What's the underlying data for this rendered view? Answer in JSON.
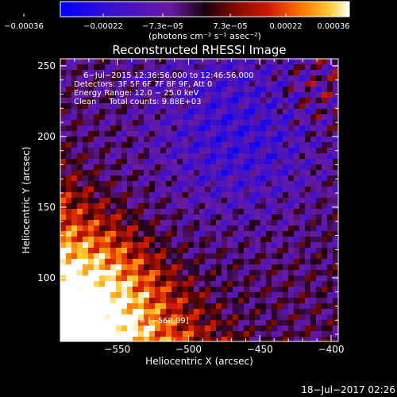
{
  "chart_data": {
    "type": "heatmap",
    "title": "Reconstructed RHESSI Image",
    "xlabel": "Heliocentric X (arcsec)",
    "ylabel": "Heliocentric Y (arcsec)",
    "xlim": [
      -590,
      -395
    ],
    "ylim": [
      55,
      255
    ],
    "x_ticks": [
      {
        "value": -550,
        "label": "−550"
      },
      {
        "value": -500,
        "label": "−500"
      },
      {
        "value": -450,
        "label": "−450"
      },
      {
        "value": -400,
        "label": "−400"
      }
    ],
    "y_ticks": [
      {
        "value": 100,
        "label": "100"
      },
      {
        "value": 150,
        "label": "150"
      },
      {
        "value": 200,
        "label": "200"
      },
      {
        "value": 250,
        "label": "250"
      }
    ],
    "colorbar": {
      "range": [
        -0.00036,
        0.00036
      ],
      "tick_labels": [
        "−0.00036",
        "−0.00022",
        "−7.3e−05",
        "7.3e−05",
        "0.00022",
        "0.00036"
      ],
      "unit_label": "(photons cm⁻² s⁻¹ asec⁻²)",
      "colors": [
        "#0000ff",
        "#3a0fcf",
        "#6a1aa0",
        "#2a0020",
        "#7a0a00",
        "#d01a00",
        "#ff7a00",
        "#ffd040",
        "#ffffff"
      ]
    },
    "annotations": [
      "6−Jul−2015 12:36:56.000 to 12:46:56.000",
      "Detectors: 3F 5F 6F 7F 8F 9F, Att 0",
      "Energy Range: 12.0 − 25.0 keV",
      "Clean     Total counts: 9.88E+03",
      "Position of Peak = [−568,99]"
    ],
    "peak": {
      "x": -568,
      "y": 99
    },
    "timestamp": "18−Jul−2017 02:26"
  }
}
